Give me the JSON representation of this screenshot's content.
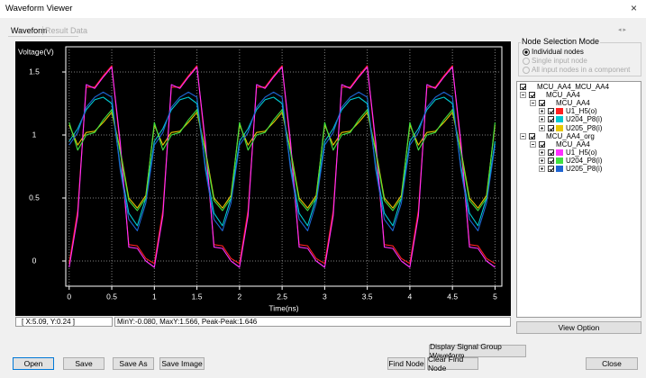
{
  "window": {
    "title": "Waveform Viewer"
  },
  "tabs": [
    "Waveform",
    "Result Data"
  ],
  "chart_data": {
    "type": "line",
    "ylabel": "Voltage(V)",
    "xlabel": "Time(ns)",
    "xlim": [
      -0.04,
      5.08
    ],
    "ylim": [
      -0.2,
      1.7
    ],
    "xticks": [
      0,
      0.5,
      1,
      1.5,
      2,
      2.5,
      3,
      3.5,
      4,
      4.5,
      5
    ],
    "yticks": [
      0,
      0.5,
      1,
      1.5
    ],
    "grid": true,
    "x": [
      0,
      0.1,
      0.2,
      0.3,
      0.4,
      0.5,
      0.6,
      0.7,
      0.8,
      0.9,
      1,
      1.1,
      1.2,
      1.3,
      1.4,
      1.5,
      1.6,
      1.7,
      1.8,
      1.9,
      2,
      2.1,
      2.2,
      2.3,
      2.4,
      2.5,
      2.6,
      2.7,
      2.8,
      2.9,
      3,
      3.1,
      3.2,
      3.3,
      3.4,
      3.5,
      3.6,
      3.7,
      3.8,
      3.9,
      4,
      4.1,
      4.2,
      4.3,
      4.4,
      4.5,
      4.6,
      4.7,
      4.8,
      4.9,
      5
    ],
    "series": [
      {
        "name": "U1_H5(o)",
        "color": "#ff2020",
        "values": [
          -0.02,
          0.4,
          1.38,
          1.38,
          1.47,
          1.55,
          0.9,
          0.13,
          0.12,
          0.02,
          -0.02,
          0.4,
          1.38,
          1.38,
          1.47,
          1.55,
          0.9,
          0.13,
          0.12,
          0.02,
          -0.02,
          0.4,
          1.38,
          1.38,
          1.47,
          1.55,
          0.9,
          0.13,
          0.12,
          0.02,
          -0.02,
          0.4,
          1.38,
          1.38,
          1.47,
          1.55,
          0.9,
          0.13,
          0.12,
          0.02,
          -0.02,
          0.4,
          1.38,
          1.38,
          1.47,
          1.55,
          0.9,
          0.13,
          0.12,
          0.02,
          -0.02
        ]
      },
      {
        "name": "U204_P8(i)",
        "color": "#00c8d0",
        "values": [
          0.95,
          1.05,
          1.2,
          1.28,
          1.3,
          1.25,
          0.75,
          0.38,
          0.28,
          0.5,
          0.95,
          1.05,
          1.2,
          1.28,
          1.3,
          1.25,
          0.75,
          0.38,
          0.28,
          0.5,
          0.95,
          1.05,
          1.2,
          1.28,
          1.3,
          1.25,
          0.75,
          0.38,
          0.28,
          0.5,
          0.95,
          1.05,
          1.2,
          1.28,
          1.3,
          1.25,
          0.75,
          0.38,
          0.28,
          0.5,
          0.95,
          1.05,
          1.2,
          1.28,
          1.3,
          1.25,
          0.75,
          0.38,
          0.28,
          0.5,
          0.95
        ]
      },
      {
        "name": "U205_P8(i)",
        "color": "#e8c800",
        "values": [
          1.08,
          0.92,
          1.02,
          1.03,
          1.1,
          1.18,
          0.88,
          0.5,
          0.42,
          0.52,
          1.08,
          0.92,
          1.02,
          1.03,
          1.1,
          1.18,
          0.88,
          0.5,
          0.42,
          0.52,
          1.08,
          0.92,
          1.02,
          1.03,
          1.1,
          1.18,
          0.88,
          0.5,
          0.42,
          0.52,
          1.08,
          0.92,
          1.02,
          1.03,
          1.1,
          1.18,
          0.88,
          0.5,
          0.42,
          0.52,
          1.08,
          0.92,
          1.02,
          1.03,
          1.1,
          1.18,
          0.88,
          0.5,
          0.42,
          0.52,
          1.08
        ]
      },
      {
        "name": "U1_H5(o)",
        "color": "#ff30ff",
        "values": [
          -0.05,
          0.36,
          1.4,
          1.37,
          1.46,
          1.54,
          0.94,
          0.11,
          0.1,
          0.0,
          -0.05,
          0.36,
          1.4,
          1.37,
          1.46,
          1.54,
          0.94,
          0.11,
          0.1,
          0.0,
          -0.05,
          0.36,
          1.4,
          1.37,
          1.46,
          1.54,
          0.94,
          0.11,
          0.1,
          0.0,
          -0.05,
          0.36,
          1.4,
          1.37,
          1.46,
          1.54,
          0.94,
          0.11,
          0.1,
          0.0,
          -0.05,
          0.36,
          1.4,
          1.37,
          1.46,
          1.54,
          0.94,
          0.11,
          0.1,
          0.0,
          -0.05
        ]
      },
      {
        "name": "U204_P8(i)",
        "color": "#40e040",
        "values": [
          1.1,
          0.88,
          1.0,
          1.02,
          1.12,
          1.2,
          0.86,
          0.48,
          0.4,
          0.5,
          1.1,
          0.88,
          1.0,
          1.02,
          1.12,
          1.2,
          0.86,
          0.48,
          0.4,
          0.5,
          1.1,
          0.88,
          1.0,
          1.02,
          1.12,
          1.2,
          0.86,
          0.48,
          0.4,
          0.5,
          1.1,
          0.88,
          1.0,
          1.02,
          1.12,
          1.2,
          0.86,
          0.48,
          0.4,
          0.5,
          1.1,
          0.88,
          1.0,
          1.02,
          1.12,
          1.2,
          0.86,
          0.48,
          0.4,
          0.5,
          1.1
        ]
      },
      {
        "name": "U205_P8(i)",
        "color": "#1e64d2",
        "values": [
          0.92,
          1.02,
          1.22,
          1.3,
          1.34,
          1.3,
          0.72,
          0.33,
          0.24,
          0.46,
          0.92,
          1.02,
          1.22,
          1.3,
          1.34,
          1.3,
          0.72,
          0.33,
          0.24,
          0.46,
          0.92,
          1.02,
          1.22,
          1.3,
          1.34,
          1.3,
          0.72,
          0.33,
          0.24,
          0.46,
          0.92,
          1.02,
          1.22,
          1.3,
          1.34,
          1.3,
          0.72,
          0.33,
          0.24,
          0.46,
          0.92,
          1.02,
          1.22,
          1.3,
          1.34,
          1.3,
          0.72,
          0.33,
          0.24,
          0.46,
          0.92
        ]
      }
    ]
  },
  "status": {
    "cursor": "[ X:5.09, Y:0.24 ]",
    "stats": "MinY:-0.080, MaxY:1.566, Peak-Peak:1.646"
  },
  "node_selection": {
    "title": "Node Selection Mode",
    "options": [
      "Individual nodes",
      "Single input node",
      "All input nodes in a component"
    ]
  },
  "tree": {
    "root": "MCU_AA4_MCU_AA4",
    "groups": [
      {
        "label": "MCU_AA4",
        "component": "MCU_AA4"
      },
      {
        "label": "MCU_AA4_org",
        "component": "MCU_AA4"
      }
    ]
  },
  "buttons": {
    "view_option": "View Option",
    "display_group": "Display Signal Group Waveform",
    "open": "Open",
    "save": "Save",
    "save_as": "Save As",
    "save_image": "Save Image",
    "find_node": "Find Node",
    "clear_find_node": "Clear Find Node",
    "close": "Close"
  }
}
